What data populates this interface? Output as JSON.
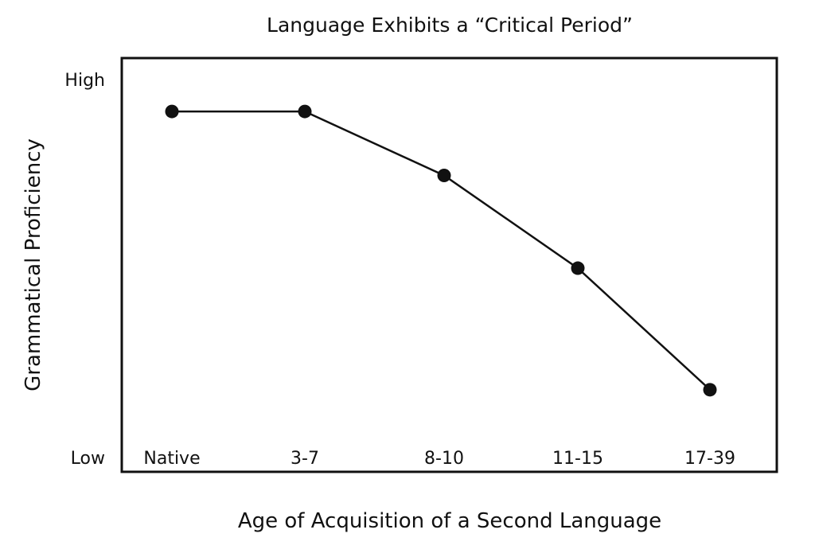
{
  "chart_data": {
    "type": "line",
    "title": "Language Exhibits a “Critical Period”",
    "xlabel": "Age of Acquisition of a Second Language",
    "ylabel": "Grammatical Proficiency",
    "categories": [
      "Native",
      "3-7",
      "8-10",
      "11-15",
      "17-39"
    ],
    "y_tick_labels": [
      "High",
      "Low"
    ],
    "ylim": [
      0,
      100
    ],
    "grid": false,
    "legend": "none",
    "series": [
      {
        "values": [
          96,
          96,
          76,
          47,
          9
        ]
      }
    ],
    "line_color": "#111111",
    "marker_color": "#111111"
  }
}
